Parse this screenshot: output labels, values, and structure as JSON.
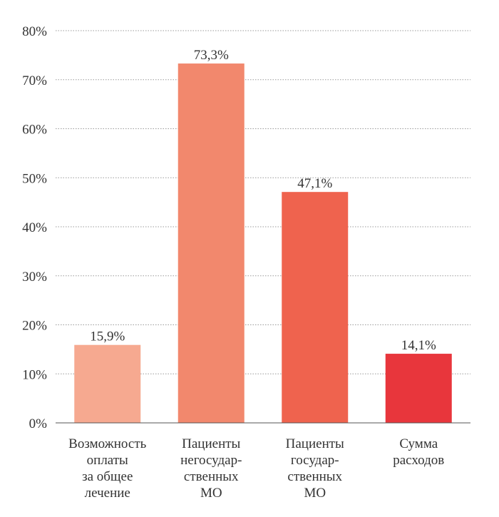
{
  "chart_data": {
    "type": "bar",
    "categories": [
      [
        "Возможность",
        "оплаты",
        "за общее",
        "лечение"
      ],
      [
        "Пациенты",
        "негосудар-",
        "ственных",
        "МО"
      ],
      [
        "Пациенты",
        "государ-",
        "ственных",
        "МО"
      ],
      [
        "Сумма",
        "расходов"
      ]
    ],
    "values": [
      15.9,
      73.3,
      47.1,
      14.1
    ],
    "value_labels": [
      "15,9%",
      "73,3%",
      "47,1%",
      "14,1%"
    ],
    "colors": [
      "#f6a990",
      "#f2886d",
      "#ef634e",
      "#e8363c"
    ],
    "y_ticks": [
      "0%",
      "10%",
      "20%",
      "30%",
      "40%",
      "50%",
      "60%",
      "70%",
      "80%"
    ],
    "ylim": [
      0,
      80
    ],
    "grid": true,
    "gridline_style": "dotted",
    "legend": "none"
  }
}
